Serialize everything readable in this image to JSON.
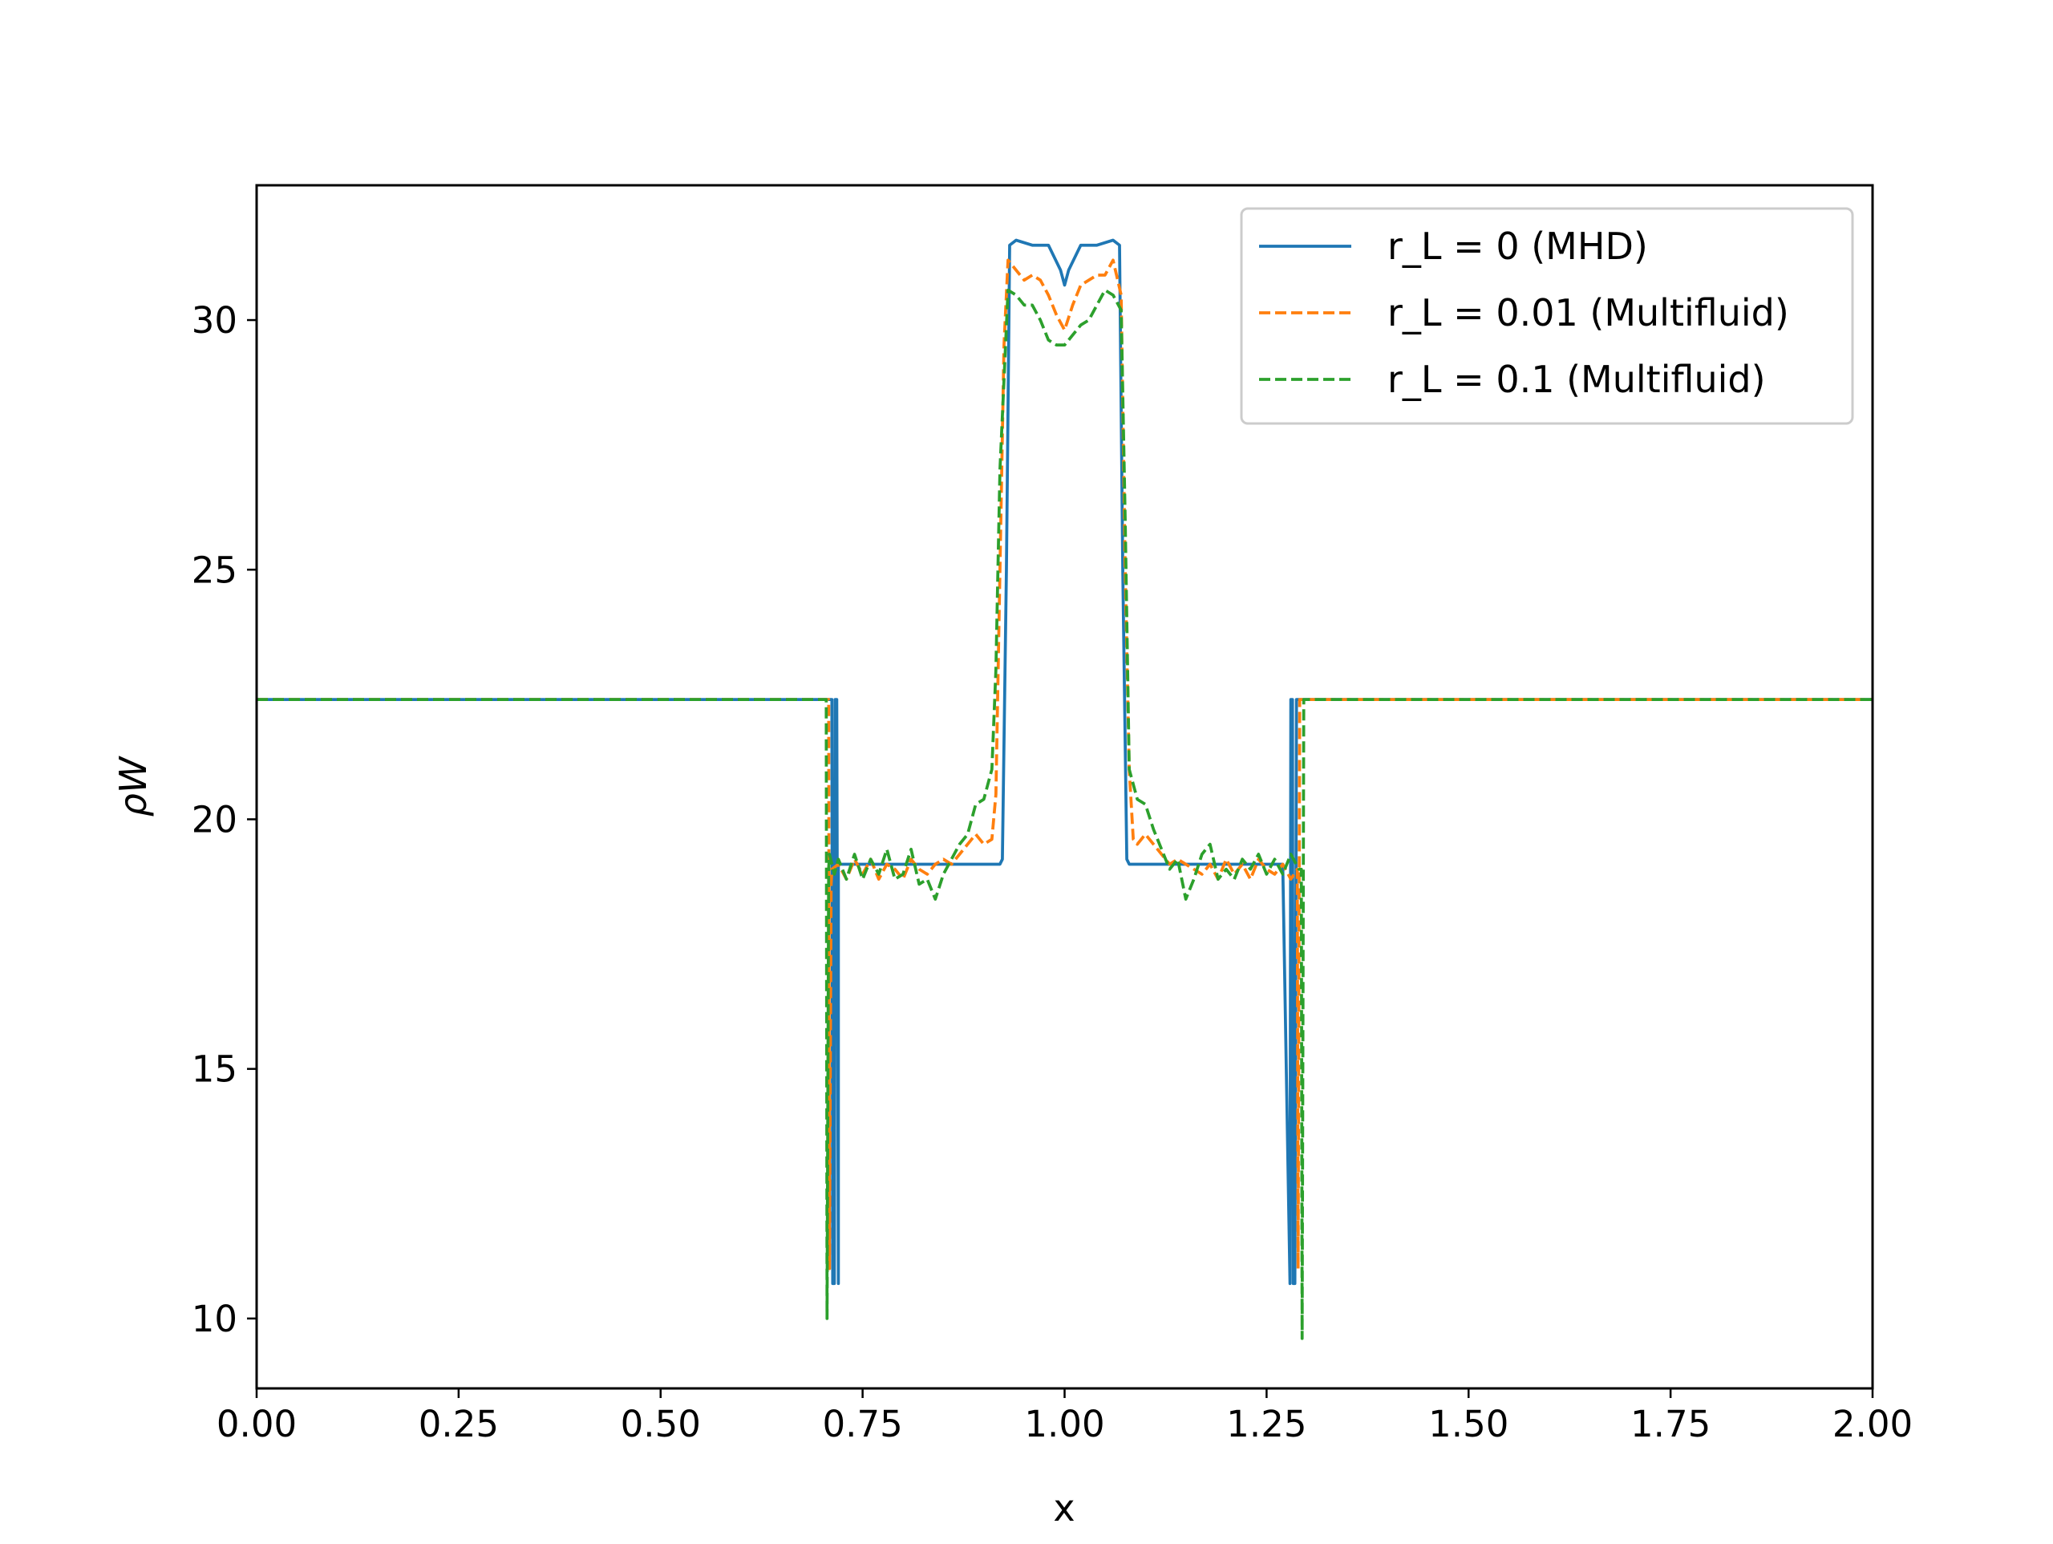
{
  "chart_data": {
    "type": "line",
    "title": "",
    "xlabel": "x",
    "ylabel": "ρW",
    "xlim": [
      0.0,
      2.0
    ],
    "ylim": [
      8.6,
      32.7
    ],
    "xticks": [
      "0.00",
      "0.25",
      "0.50",
      "0.75",
      "1.00",
      "1.25",
      "1.50",
      "1.75",
      "2.00"
    ],
    "yticks": [
      "10",
      "15",
      "20",
      "25",
      "30"
    ],
    "grid": false,
    "legend_position": "top-right",
    "series": [
      {
        "name": "r_L = 0 (MHD)",
        "color": "#1f77b4",
        "dash": "solid",
        "x": [
          0.0,
          0.712,
          0.713,
          0.715,
          0.716,
          0.718,
          0.72,
          0.72,
          0.73,
          0.78,
          0.84,
          0.9,
          0.92,
          0.923,
          0.928,
          0.932,
          0.94,
          0.96,
          0.98,
          0.995,
          1.0,
          1.005,
          1.02,
          1.04,
          1.06,
          1.068,
          1.072,
          1.077,
          1.08,
          1.1,
          1.2,
          1.27,
          1.279,
          1.28,
          1.282,
          1.283,
          1.285,
          1.287,
          2.0
        ],
        "y": [
          22.4,
          22.4,
          10.7,
          10.7,
          22.4,
          22.4,
          10.7,
          19.1,
          19.1,
          19.1,
          19.1,
          19.1,
          19.1,
          19.2,
          25.0,
          31.5,
          31.6,
          31.5,
          31.5,
          31.0,
          30.7,
          31.0,
          31.5,
          31.5,
          31.6,
          31.5,
          25.0,
          19.2,
          19.1,
          19.1,
          19.1,
          19.1,
          10.7,
          22.4,
          22.4,
          10.7,
          10.7,
          22.4,
          22.4
        ]
      },
      {
        "name": "r_L = 0.01 (Multifluid)",
        "color": "#ff7f0e",
        "dash": "dashed",
        "x": [
          0.0,
          0.708,
          0.709,
          0.711,
          0.712,
          0.72,
          0.73,
          0.74,
          0.75,
          0.76,
          0.77,
          0.78,
          0.79,
          0.8,
          0.81,
          0.82,
          0.83,
          0.84,
          0.85,
          0.86,
          0.87,
          0.88,
          0.89,
          0.9,
          0.91,
          0.915,
          0.92,
          0.925,
          0.93,
          0.94,
          0.95,
          0.96,
          0.97,
          0.98,
          0.99,
          1.0,
          1.01,
          1.02,
          1.03,
          1.04,
          1.05,
          1.06,
          1.07,
          1.075,
          1.08,
          1.085,
          1.09,
          1.1,
          1.11,
          1.12,
          1.13,
          1.14,
          1.15,
          1.16,
          1.17,
          1.18,
          1.19,
          1.2,
          1.21,
          1.22,
          1.23,
          1.24,
          1.25,
          1.26,
          1.27,
          1.28,
          1.288,
          1.289,
          1.291,
          1.292,
          2.0
        ],
        "y": [
          22.4,
          22.4,
          11.0,
          18.7,
          19.0,
          19.1,
          18.8,
          19.2,
          18.9,
          19.2,
          18.8,
          19.1,
          19.0,
          18.8,
          19.2,
          19.0,
          18.9,
          19.1,
          19.2,
          19.1,
          19.3,
          19.5,
          19.7,
          19.5,
          19.6,
          20.5,
          25.0,
          29.5,
          31.2,
          31.0,
          30.8,
          30.9,
          30.8,
          30.5,
          30.1,
          29.8,
          30.3,
          30.7,
          30.8,
          30.9,
          30.9,
          31.2,
          30.5,
          25.0,
          21.0,
          19.6,
          19.5,
          19.7,
          19.5,
          19.3,
          19.1,
          19.2,
          19.1,
          19.0,
          18.9,
          19.1,
          18.8,
          19.2,
          18.9,
          19.1,
          18.8,
          19.2,
          19.0,
          18.9,
          19.1,
          18.8,
          19.0,
          11.0,
          22.4,
          22.4,
          22.4
        ]
      },
      {
        "name": "r_L = 0.1 (Multifluid)",
        "color": "#2ca02c",
        "dash": "dashed",
        "x": [
          0.0,
          0.705,
          0.706,
          0.708,
          0.709,
          0.715,
          0.72,
          0.73,
          0.74,
          0.75,
          0.76,
          0.77,
          0.78,
          0.79,
          0.8,
          0.81,
          0.82,
          0.83,
          0.84,
          0.85,
          0.86,
          0.87,
          0.88,
          0.89,
          0.9,
          0.91,
          0.915,
          0.92,
          0.93,
          0.94,
          0.95,
          0.96,
          0.97,
          0.98,
          0.99,
          1.0,
          1.01,
          1.02,
          1.03,
          1.04,
          1.05,
          1.06,
          1.07,
          1.075,
          1.08,
          1.09,
          1.1,
          1.11,
          1.12,
          1.13,
          1.14,
          1.15,
          1.16,
          1.17,
          1.18,
          1.19,
          1.2,
          1.21,
          1.22,
          1.23,
          1.24,
          1.25,
          1.26,
          1.27,
          1.28,
          1.29,
          1.293,
          1.294,
          1.296,
          1.297,
          2.0
        ],
        "y": [
          22.4,
          22.4,
          10.0,
          19.0,
          19.3,
          18.9,
          19.2,
          18.8,
          19.3,
          18.8,
          19.2,
          18.9,
          19.4,
          18.8,
          18.9,
          19.4,
          18.7,
          18.8,
          18.4,
          18.9,
          19.2,
          19.5,
          19.7,
          20.3,
          20.4,
          21.0,
          23.0,
          27.0,
          30.6,
          30.5,
          30.3,
          30.3,
          30.0,
          29.6,
          29.5,
          29.5,
          29.7,
          29.9,
          30.0,
          30.3,
          30.6,
          30.5,
          30.2,
          26.0,
          21.0,
          20.4,
          20.3,
          19.8,
          19.4,
          19.0,
          19.2,
          18.4,
          18.8,
          19.3,
          19.5,
          18.8,
          19.0,
          18.8,
          19.2,
          19.0,
          19.3,
          18.9,
          19.2,
          18.9,
          19.3,
          19.0,
          19.0,
          9.6,
          22.4,
          22.4,
          22.4
        ]
      }
    ]
  }
}
